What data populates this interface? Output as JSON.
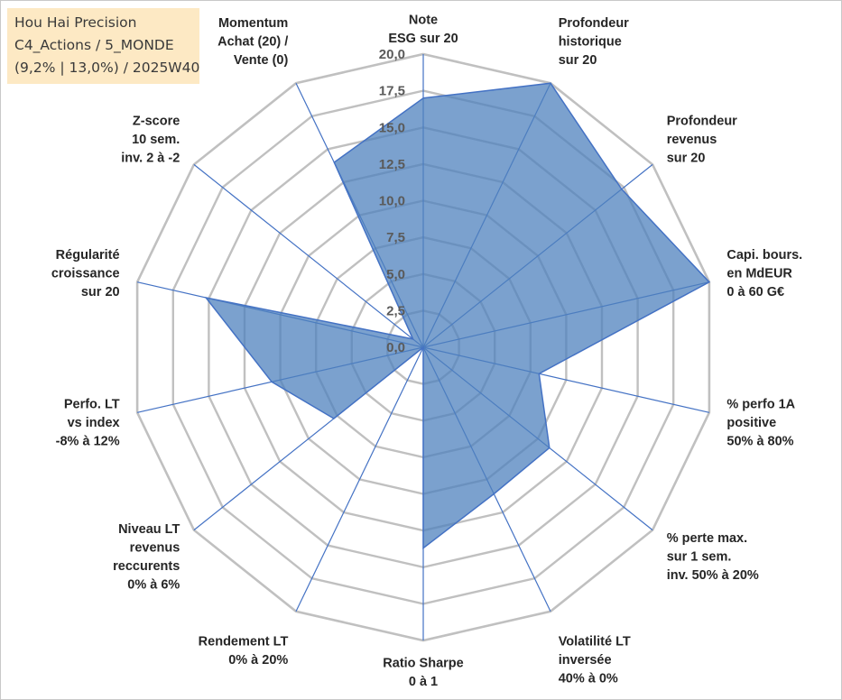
{
  "info": {
    "line1": "Hou Hai Precision",
    "line2": "C4_Actions / 5_MONDE",
    "line3": "(9,2% | 13,0%) / 2025W40"
  },
  "colors": {
    "fill": "#4f81bd",
    "stroke": "#4472c4",
    "grid": "#c0c0c0",
    "spoke": "#4472c4"
  },
  "chart_data": {
    "type": "radar",
    "title": "",
    "range": [
      0,
      20
    ],
    "ticks": [
      "0,0",
      "2,5",
      "5,0",
      "7,5",
      "10,0",
      "12,5",
      "15,0",
      "17,5",
      "20,0"
    ],
    "axes": [
      [
        "Note",
        "ESG sur 20"
      ],
      [
        "Profondeur",
        "historique",
        "sur 20"
      ],
      [
        "Profondeur",
        "revenus",
        "sur 20"
      ],
      [
        "Capi. bours.",
        "en MdEUR",
        "0 à 60 G€"
      ],
      [
        "% perfo 1A",
        "positive",
        "50% à 80%"
      ],
      [
        "% perte max.",
        "sur 1 sem.",
        "inv. 50% à 20%"
      ],
      [
        "Volatilité LT",
        "inversée",
        "40% à 0%"
      ],
      [
        "Ratio Sharpe",
        "0 à 1"
      ],
      [
        "Rendement LT",
        "0% à 20%"
      ],
      [
        "Niveau LT",
        "revenus",
        "reccurents",
        "0% à 6%"
      ],
      [
        "Perfo. LT",
        "vs index",
        "-8% à 12%"
      ],
      [
        "Régularité",
        "croissance",
        "sur 20"
      ],
      [
        "Z-score",
        "10 sem.",
        "inv. 2 à -2"
      ],
      [
        "Momentum",
        "Achat (20) /",
        "Vente (0)"
      ]
    ],
    "series": [
      {
        "name": "Hou Hai Precision",
        "values": [
          17,
          20,
          17.3,
          20,
          8.1,
          11,
          11.1,
          13.7,
          0,
          7.8,
          10.6,
          15.2,
          0.9,
          14
        ]
      }
    ]
  }
}
